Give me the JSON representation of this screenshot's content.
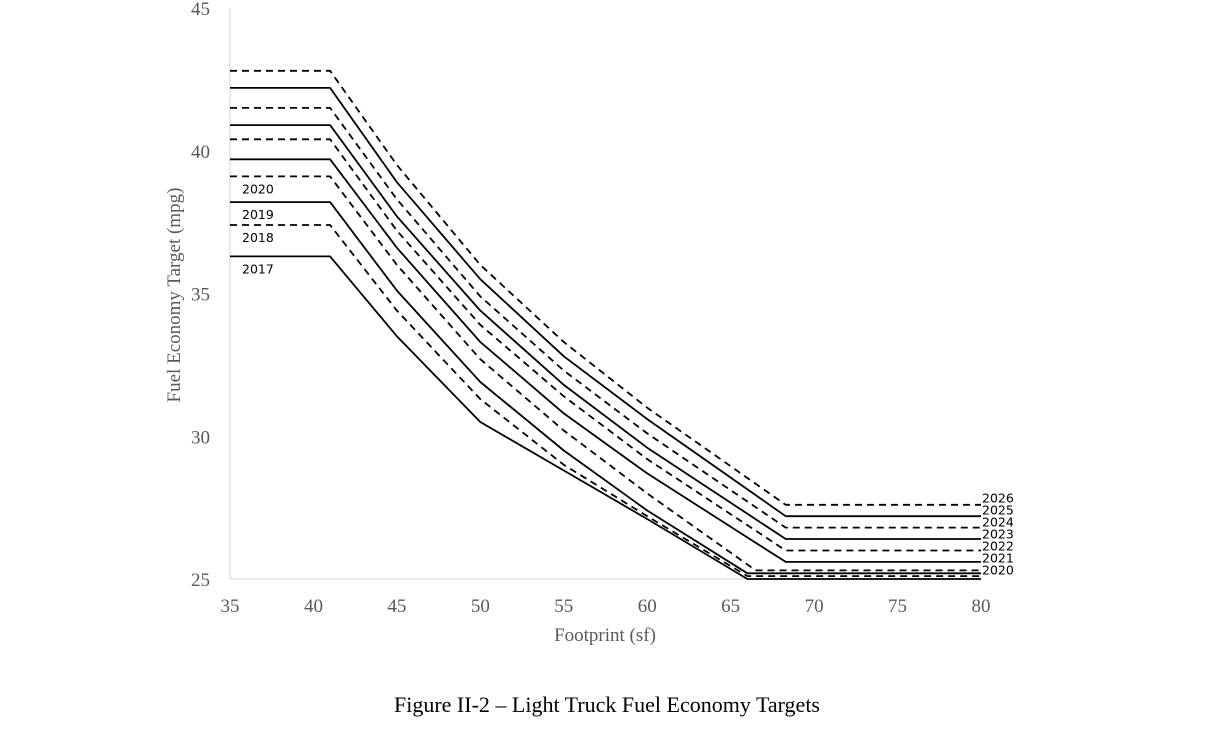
{
  "figure": {
    "caption": "Figure II-2 – Light Truck Fuel Economy Targets"
  },
  "chart_data": {
    "type": "line",
    "title": "",
    "xlabel": "Footprint (sf)",
    "ylabel": "Fuel Economy Target (mpg)",
    "xlim": [
      35,
      80
    ],
    "ylim": [
      25,
      45
    ],
    "x_ticks": [
      "35",
      "40",
      "45",
      "50",
      "55",
      "60",
      "65",
      "70",
      "75",
      "80"
    ],
    "y_ticks": [
      "25",
      "30",
      "35",
      "40",
      "45"
    ],
    "grid": false,
    "legend": "none (series labelled directly on the plot)",
    "colors": {
      "line": "#000000",
      "axis": "#d9d9d9",
      "tick_text": "#595959"
    },
    "series": [
      {
        "name": "2017",
        "style": "solid",
        "x": [
          35,
          41,
          45,
          50,
          55,
          60,
          66,
          80
        ],
        "y": [
          36.3,
          36.3,
          33.5,
          30.5,
          28.8,
          27.1,
          25.0,
          25.0
        ],
        "label_side": "left"
      },
      {
        "name": "2018",
        "style": "dashed",
        "x": [
          35,
          41,
          45,
          50,
          55,
          60,
          66,
          80
        ],
        "y": [
          37.4,
          37.4,
          34.4,
          31.3,
          29.0,
          27.2,
          25.1,
          25.1
        ],
        "label_side": "left"
      },
      {
        "name": "2019",
        "style": "solid",
        "x": [
          35,
          41,
          45,
          50,
          55,
          60,
          66,
          80
        ],
        "y": [
          38.2,
          38.2,
          35.1,
          31.9,
          29.5,
          27.4,
          25.2,
          25.2
        ],
        "label_side": "left"
      },
      {
        "name": "2020",
        "style": "dashed",
        "x": [
          35,
          41,
          45,
          50,
          55,
          60,
          66.5,
          80
        ],
        "y": [
          39.1,
          39.1,
          36.0,
          32.7,
          30.2,
          28.0,
          25.3,
          25.3
        ],
        "label_side": "both"
      },
      {
        "name": "2021",
        "style": "solid",
        "x": [
          35,
          41,
          45,
          50,
          55,
          60,
          68.3,
          80
        ],
        "y": [
          39.7,
          39.7,
          36.6,
          33.3,
          30.8,
          28.7,
          25.6,
          25.6
        ],
        "label_side": "right"
      },
      {
        "name": "2022",
        "style": "dashed",
        "x": [
          35,
          41,
          45,
          50,
          55,
          60,
          68.3,
          80
        ],
        "y": [
          40.4,
          40.4,
          37.2,
          33.9,
          31.4,
          29.2,
          26.0,
          26.0
        ],
        "label_side": "right"
      },
      {
        "name": "2023",
        "style": "solid",
        "x": [
          35,
          41,
          45,
          50,
          55,
          60,
          68.3,
          80
        ],
        "y": [
          40.9,
          40.9,
          37.7,
          34.4,
          31.8,
          29.6,
          26.4,
          26.4
        ],
        "label_side": "right"
      },
      {
        "name": "2024",
        "style": "dashed",
        "x": [
          35,
          41,
          45,
          50,
          55,
          60,
          68.3,
          80
        ],
        "y": [
          41.5,
          41.5,
          38.3,
          34.9,
          32.3,
          30.1,
          26.8,
          26.8
        ],
        "label_side": "right"
      },
      {
        "name": "2025",
        "style": "solid",
        "x": [
          35,
          41,
          45,
          50,
          55,
          60,
          68.3,
          80
        ],
        "y": [
          42.2,
          42.2,
          38.9,
          35.5,
          32.8,
          30.6,
          27.2,
          27.2
        ],
        "label_side": "right"
      },
      {
        "name": "2026",
        "style": "dashed",
        "x": [
          35,
          41,
          45,
          50,
          55,
          60,
          68.3,
          80
        ],
        "y": [
          42.8,
          42.8,
          39.5,
          36.0,
          33.3,
          31.0,
          27.6,
          27.6
        ],
        "label_side": "right"
      }
    ]
  }
}
